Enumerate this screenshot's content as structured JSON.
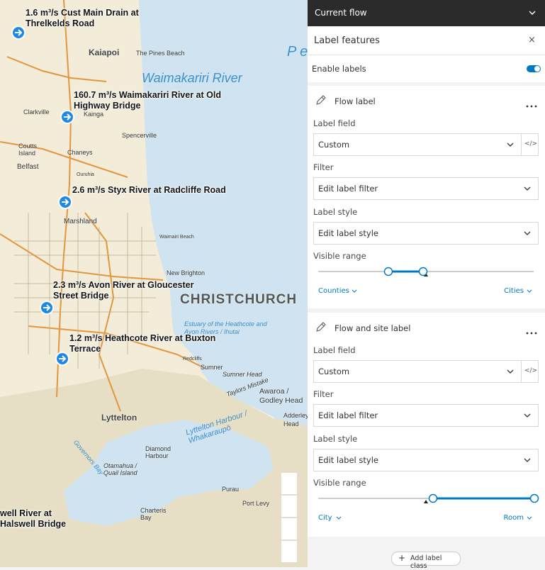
{
  "map": {
    "flow_labels": [
      "1.6 m³/s Cust Main Drain at Threlkelds Road",
      "160.7 m³/s Waimakariri River at Old Highway Bridge",
      "2.6 m³/s Styx River at Radcliffe Road",
      "2.3 m³/s Avon River at Gloucester Street Bridge",
      "1.2 m³/s Heathcote River at Buxton Terrace",
      "well River at Halswell Bridge"
    ],
    "places": [
      "Kaiapoi",
      "The Pines Beach",
      "Waimakariri River",
      "P e",
      "Clarkville",
      "Kainga",
      "Spencerville",
      "Belfast",
      "Chaneys",
      "Marshland",
      "Waimairi Beach",
      "New Brighton",
      "CHRISTCHURCH",
      "Estuary of the Heathcote and Avon Rivers / Ihutai",
      "Sumner",
      "Sumner Head",
      "Taylors Mistake",
      "Awaroa / Godley Head",
      "Adderley Head",
      "Lyttelton",
      "Lyttelton Harbour / Whakaraupō",
      "Otamahua / Quail Island",
      "Diamond Harbour",
      "Purau",
      "Port Levy",
      "Governors Bay",
      "Charteris Bay",
      "Redcliffs",
      "Ouruhia",
      "Coutts Island"
    ]
  },
  "panel": {
    "header": "Current flow",
    "title": "Label features",
    "enable_labels": "Enable labels",
    "label_classes": [
      {
        "name": "Flow label",
        "label_field_heading": "Label field",
        "label_field": "Custom",
        "filter_heading": "Filter",
        "filter": "Edit label filter",
        "style_heading": "Label style",
        "style": "Edit label style",
        "range_heading": "Visible range",
        "range_min": "Counties",
        "range_max": "Cities"
      },
      {
        "name": "Flow and site label",
        "label_field_heading": "Label field",
        "label_field": "Custom",
        "filter_heading": "Filter",
        "filter": "Edit label filter",
        "style_heading": "Label style",
        "style": "Edit label style",
        "range_heading": "Visible range",
        "range_min": "City",
        "range_max": "Room"
      }
    ],
    "add_button": "Add label class"
  }
}
